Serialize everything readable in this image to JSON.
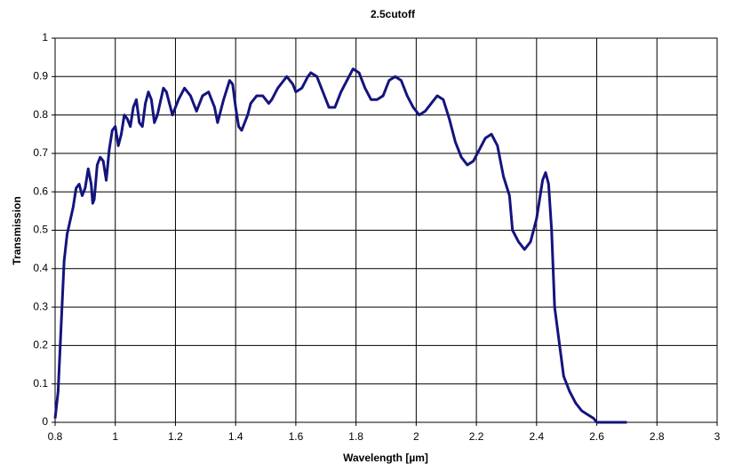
{
  "chart_data": {
    "type": "line",
    "title": "2.5cutoff",
    "x_label": "Wavelength [µm]",
    "y_label": "Transmission",
    "xlim": [
      0.8,
      3
    ],
    "xticks": [
      0.8,
      1,
      1.2,
      1.4,
      1.6,
      1.8,
      2,
      2.2,
      2.4,
      2.6,
      2.8,
      3
    ],
    "ylim": [
      0,
      1
    ],
    "yticks": [
      0,
      0.1,
      0.2,
      0.3,
      0.4,
      0.5,
      0.6,
      0.7,
      0.8,
      0.9,
      1
    ],
    "grid": true,
    "x": [
      0.8,
      0.81,
      0.82,
      0.83,
      0.84,
      0.86,
      0.87,
      0.88,
      0.89,
      0.9,
      0.91,
      0.92,
      0.925,
      0.93,
      0.94,
      0.95,
      0.96,
      0.97,
      0.98,
      0.99,
      1.0,
      1.01,
      1.02,
      1.03,
      1.04,
      1.05,
      1.06,
      1.07,
      1.08,
      1.09,
      1.1,
      1.11,
      1.12,
      1.13,
      1.14,
      1.16,
      1.17,
      1.19,
      1.21,
      1.23,
      1.25,
      1.27,
      1.29,
      1.31,
      1.33,
      1.34,
      1.36,
      1.38,
      1.39,
      1.4,
      1.41,
      1.42,
      1.44,
      1.45,
      1.47,
      1.49,
      1.51,
      1.52,
      1.54,
      1.56,
      1.57,
      1.59,
      1.6,
      1.62,
      1.64,
      1.65,
      1.67,
      1.69,
      1.71,
      1.73,
      1.75,
      1.77,
      1.79,
      1.81,
      1.83,
      1.85,
      1.87,
      1.89,
      1.91,
      1.93,
      1.95,
      1.97,
      1.99,
      2.01,
      2.03,
      2.05,
      2.07,
      2.09,
      2.11,
      2.13,
      2.15,
      2.17,
      2.19,
      2.21,
      2.23,
      2.25,
      2.27,
      2.29,
      2.31,
      2.32,
      2.34,
      2.36,
      2.38,
      2.4,
      2.41,
      2.42,
      2.43,
      2.44,
      2.45,
      2.46,
      2.48,
      2.49,
      2.51,
      2.53,
      2.55,
      2.57,
      2.59,
      2.6,
      2.7
    ],
    "series": [
      {
        "color": "#14147e",
        "values": [
          0.01,
          0.08,
          0.25,
          0.42,
          0.49,
          0.56,
          0.61,
          0.62,
          0.59,
          0.61,
          0.66,
          0.62,
          0.57,
          0.58,
          0.67,
          0.69,
          0.68,
          0.63,
          0.71,
          0.76,
          0.77,
          0.72,
          0.75,
          0.8,
          0.79,
          0.77,
          0.82,
          0.84,
          0.78,
          0.77,
          0.83,
          0.86,
          0.84,
          0.78,
          0.8,
          0.87,
          0.86,
          0.8,
          0.84,
          0.87,
          0.85,
          0.81,
          0.85,
          0.86,
          0.82,
          0.78,
          0.84,
          0.89,
          0.88,
          0.82,
          0.77,
          0.76,
          0.8,
          0.83,
          0.85,
          0.85,
          0.83,
          0.84,
          0.87,
          0.89,
          0.9,
          0.88,
          0.86,
          0.87,
          0.9,
          0.91,
          0.9,
          0.86,
          0.82,
          0.82,
          0.86,
          0.89,
          0.92,
          0.91,
          0.87,
          0.84,
          0.84,
          0.85,
          0.89,
          0.9,
          0.89,
          0.85,
          0.82,
          0.8,
          0.81,
          0.83,
          0.85,
          0.84,
          0.79,
          0.73,
          0.69,
          0.67,
          0.68,
          0.71,
          0.74,
          0.75,
          0.72,
          0.64,
          0.59,
          0.5,
          0.47,
          0.45,
          0.47,
          0.53,
          0.58,
          0.63,
          0.65,
          0.62,
          0.5,
          0.3,
          0.18,
          0.12,
          0.08,
          0.05,
          0.03,
          0.02,
          0.01,
          0,
          0
        ]
      }
    ]
  }
}
